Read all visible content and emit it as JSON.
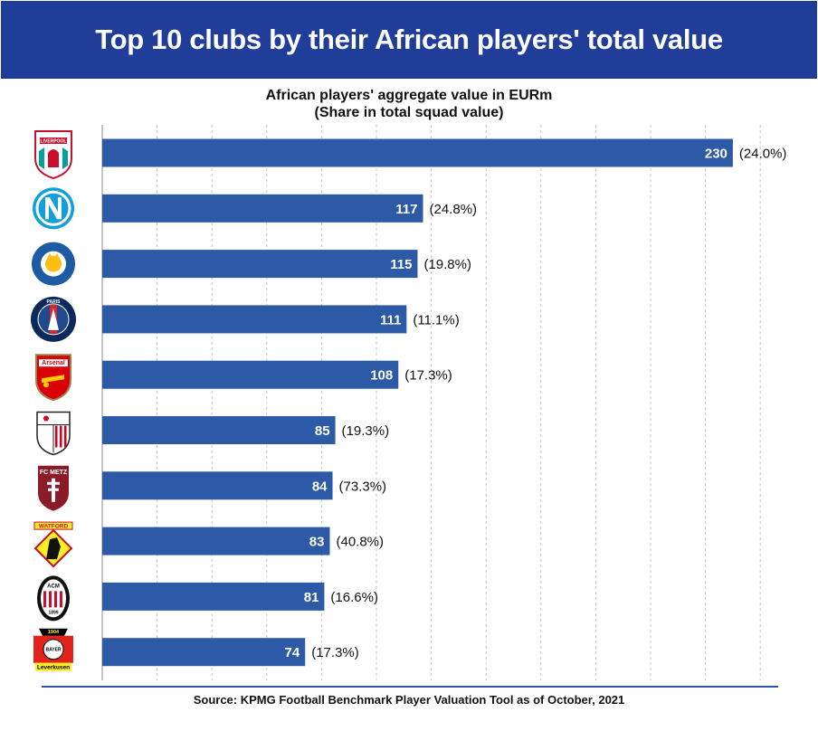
{
  "header": {
    "title": "Top 10 clubs by their African players' total value",
    "subtitle_line1": "African players' aggregate value in EURm",
    "subtitle_line2": "(Share in total squad value)"
  },
  "footer": {
    "source": "Source: KPMG Football Benchmark Player Valuation Tool as of October, 2021"
  },
  "colors": {
    "banner": "#1f3d99",
    "bar": "#2c5aa6",
    "grid": "#c8c8c8",
    "text": "#111111",
    "rule": "#2c56a8"
  },
  "chart_data": {
    "type": "bar",
    "orientation": "horizontal",
    "title": "African players' aggregate value in EURm",
    "subtitle": "(Share in total squad value)",
    "categories": [
      "Liverpool",
      "Napoli",
      "Leicester City",
      "Paris Saint-Germain",
      "Arsenal",
      "Sevilla",
      "FC Metz",
      "Watford",
      "AC Milan",
      "Bayer Leverkusen"
    ],
    "logo_labels": [
      "LIVERPOOL",
      "",
      "LEICESTER CITY FOOTBALL CLUB",
      "PARIS",
      "Arsenal",
      "",
      "FC METZ",
      "WATFORD",
      "ACM 1899",
      "Bayer Leverkusen 1904"
    ],
    "values": [
      230,
      117,
      115,
      111,
      108,
      85,
      84,
      83,
      81,
      74
    ],
    "value_labels": [
      "230",
      "117",
      "115",
      "111",
      "108",
      "85",
      "84",
      "83",
      "81",
      "74"
    ],
    "share_labels": [
      "(24.0%)",
      "(24.8%)",
      "(19.8%)",
      "(11.1%)",
      "(17.3%)",
      "(19.3%)",
      "(73.3%)",
      "(40.8%)",
      "(16.6%)",
      "(17.3%)"
    ],
    "xlim": [
      0,
      240
    ],
    "grid": "vertical dashed",
    "legend": "none"
  }
}
